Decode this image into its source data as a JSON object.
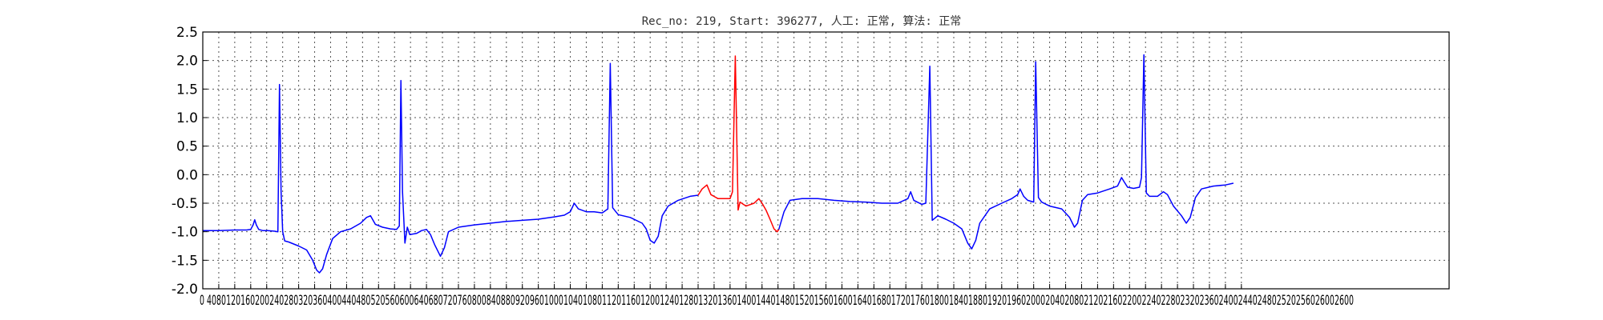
{
  "chart_data": {
    "type": "line",
    "title": "Rec_no: 219, Start: 396277, 人工: 正常, 算法: 正常",
    "xlabel": "",
    "ylabel": "",
    "xlim": [
      0,
      3120
    ],
    "ylim": [
      -2.0,
      2.5
    ],
    "y_ticks": [
      "2.5",
      "2.0",
      "1.5",
      "1.0",
      "0.5",
      "0.0",
      "-0.5",
      "-1.0",
      "-1.5",
      "-2.0"
    ],
    "x_ticks": [
      0,
      40,
      80,
      120,
      160,
      200,
      240,
      280,
      320,
      360,
      400,
      440,
      480,
      520,
      560,
      600,
      640,
      680,
      720,
      760,
      800,
      840,
      880,
      920,
      960,
      1000,
      1040,
      1080,
      1120,
      1160,
      1200,
      1240,
      1280,
      1320,
      1360,
      1400,
      1440,
      1480,
      1520,
      1560,
      1600,
      1640,
      1680,
      1720,
      1760,
      1800,
      1840,
      1880,
      1920,
      1960,
      2000,
      2040,
      2080,
      2120,
      2160,
      2200,
      2240,
      2280,
      2320,
      2360,
      2400,
      2440,
      2480,
      2520,
      2560,
      2600
    ],
    "x_tick_labels_text": "0 4080120160200240280320360400440480520560600640680720760800840880920960100010401080112011601200124012801320136014001440148015201560160016401680172017601800184018801920196020002040208021202160220022402280232023602400244024802520256026002600",
    "grid": true,
    "colors": {
      "normal": "#0000ff",
      "highlight": "#ff0000"
    },
    "series": [
      {
        "color": "normal",
        "points": [
          [
            0,
            -0.98
          ],
          [
            40,
            -0.98
          ],
          [
            80,
            -0.97
          ],
          [
            100,
            -0.97
          ],
          [
            110,
            -0.97
          ],
          [
            120,
            -0.96
          ],
          [
            126,
            -0.88
          ],
          [
            130,
            -0.79
          ],
          [
            134,
            -0.88
          ],
          [
            140,
            -0.96
          ],
          [
            150,
            -0.98
          ],
          [
            162,
            -0.98
          ],
          [
            180,
            -0.99
          ],
          [
            188,
            -1.0
          ],
          [
            192,
            1.58
          ],
          [
            196,
            -0.3
          ],
          [
            200,
            -1.0
          ],
          [
            205,
            -1.16
          ],
          [
            215,
            -1.18
          ],
          [
            240,
            -1.25
          ],
          [
            260,
            -1.32
          ],
          [
            275,
            -1.5
          ],
          [
            285,
            -1.67
          ],
          [
            292,
            -1.72
          ],
          [
            300,
            -1.65
          ],
          [
            310,
            -1.4
          ],
          [
            325,
            -1.12
          ],
          [
            345,
            -1.0
          ],
          [
            370,
            -0.95
          ],
          [
            395,
            -0.85
          ],
          [
            410,
            -0.75
          ],
          [
            420,
            -0.72
          ],
          [
            432,
            -0.87
          ],
          [
            450,
            -0.92
          ],
          [
            470,
            -0.95
          ],
          [
            485,
            -0.96
          ],
          [
            492,
            -0.9
          ],
          [
            496,
            1.65
          ],
          [
            500,
            -0.3
          ],
          [
            506,
            -1.2
          ],
          [
            512,
            -0.92
          ],
          [
            518,
            -1.05
          ],
          [
            535,
            -1.03
          ],
          [
            548,
            -0.98
          ],
          [
            560,
            -0.96
          ],
          [
            570,
            -1.05
          ],
          [
            580,
            -1.22
          ],
          [
            595,
            -1.43
          ],
          [
            605,
            -1.28
          ],
          [
            615,
            -1.0
          ],
          [
            640,
            -0.92
          ],
          [
            680,
            -0.88
          ],
          [
            720,
            -0.85
          ],
          [
            760,
            -0.82
          ],
          [
            800,
            -0.8
          ],
          [
            840,
            -0.78
          ],
          [
            880,
            -0.74
          ],
          [
            905,
            -0.71
          ],
          [
            920,
            -0.65
          ],
          [
            930,
            -0.5
          ],
          [
            940,
            -0.6
          ],
          [
            960,
            -0.65
          ],
          [
            980,
            -0.65
          ],
          [
            1000,
            -0.67
          ],
          [
            1014,
            -0.6
          ],
          [
            1020,
            1.95
          ],
          [
            1026,
            -0.58
          ],
          [
            1040,
            -0.7
          ],
          [
            1070,
            -0.75
          ],
          [
            1100,
            -0.85
          ],
          [
            1110,
            -0.95
          ],
          [
            1120,
            -1.15
          ],
          [
            1130,
            -1.2
          ],
          [
            1140,
            -1.08
          ],
          [
            1150,
            -0.72
          ],
          [
            1165,
            -0.55
          ],
          [
            1190,
            -0.45
          ],
          [
            1220,
            -0.38
          ],
          [
            1240,
            -0.36
          ]
        ]
      },
      {
        "color": "highlight",
        "points": [
          [
            1240,
            -0.36
          ],
          [
            1250,
            -0.25
          ],
          [
            1262,
            -0.18
          ],
          [
            1272,
            -0.35
          ],
          [
            1290,
            -0.42
          ],
          [
            1320,
            -0.42
          ],
          [
            1326,
            -0.3
          ],
          [
            1333,
            2.08
          ],
          [
            1340,
            -0.62
          ],
          [
            1345,
            -0.48
          ],
          [
            1360,
            -0.55
          ],
          [
            1380,
            -0.5
          ],
          [
            1392,
            -0.42
          ],
          [
            1400,
            -0.5
          ],
          [
            1410,
            -0.62
          ],
          [
            1420,
            -0.78
          ],
          [
            1430,
            -0.95
          ],
          [
            1438,
            -1.0
          ],
          [
            1442,
            -0.96
          ]
        ]
      },
      {
        "color": "normal",
        "points": [
          [
            1442,
            -0.96
          ],
          [
            1455,
            -0.65
          ],
          [
            1470,
            -0.45
          ],
          [
            1500,
            -0.42
          ],
          [
            1540,
            -0.42
          ],
          [
            1580,
            -0.45
          ],
          [
            1620,
            -0.47
          ],
          [
            1660,
            -0.48
          ],
          [
            1700,
            -0.5
          ],
          [
            1740,
            -0.5
          ],
          [
            1765,
            -0.42
          ],
          [
            1772,
            -0.3
          ],
          [
            1780,
            -0.45
          ],
          [
            1800,
            -0.52
          ],
          [
            1810,
            -0.5
          ],
          [
            1820,
            1.9
          ],
          [
            1826,
            -0.8
          ],
          [
            1840,
            -0.72
          ],
          [
            1860,
            -0.78
          ],
          [
            1880,
            -0.85
          ],
          [
            1900,
            -0.95
          ],
          [
            1915,
            -1.2
          ],
          [
            1925,
            -1.3
          ],
          [
            1935,
            -1.15
          ],
          [
            1945,
            -0.85
          ],
          [
            1970,
            -0.6
          ],
          [
            2000,
            -0.5
          ],
          [
            2025,
            -0.42
          ],
          [
            2040,
            -0.35
          ],
          [
            2046,
            -0.25
          ],
          [
            2055,
            -0.38
          ],
          [
            2065,
            -0.45
          ],
          [
            2080,
            -0.48
          ],
          [
            2085,
            1.98
          ],
          [
            2092,
            -0.4
          ],
          [
            2100,
            -0.48
          ],
          [
            2120,
            -0.55
          ],
          [
            2150,
            -0.6
          ],
          [
            2170,
            -0.75
          ],
          [
            2182,
            -0.92
          ],
          [
            2190,
            -0.85
          ],
          [
            2202,
            -0.45
          ],
          [
            2215,
            -0.35
          ],
          [
            2240,
            -0.32
          ],
          [
            2270,
            -0.25
          ],
          [
            2290,
            -0.2
          ],
          [
            2300,
            -0.05
          ],
          [
            2306,
            -0.12
          ],
          [
            2315,
            -0.22
          ],
          [
            2330,
            -0.24
          ],
          [
            2345,
            -0.22
          ],
          [
            2350,
            -0.05
          ],
          [
            2356,
            2.1
          ],
          [
            2362,
            -0.32
          ],
          [
            2370,
            -0.38
          ],
          [
            2390,
            -0.38
          ],
          [
            2405,
            -0.3
          ],
          [
            2415,
            -0.35
          ],
          [
            2430,
            -0.55
          ],
          [
            2450,
            -0.72
          ],
          [
            2462,
            -0.85
          ],
          [
            2472,
            -0.75
          ],
          [
            2485,
            -0.4
          ],
          [
            2500,
            -0.25
          ],
          [
            2530,
            -0.2
          ],
          [
            2560,
            -0.18
          ],
          [
            2580,
            -0.15
          ]
        ]
      }
    ]
  }
}
